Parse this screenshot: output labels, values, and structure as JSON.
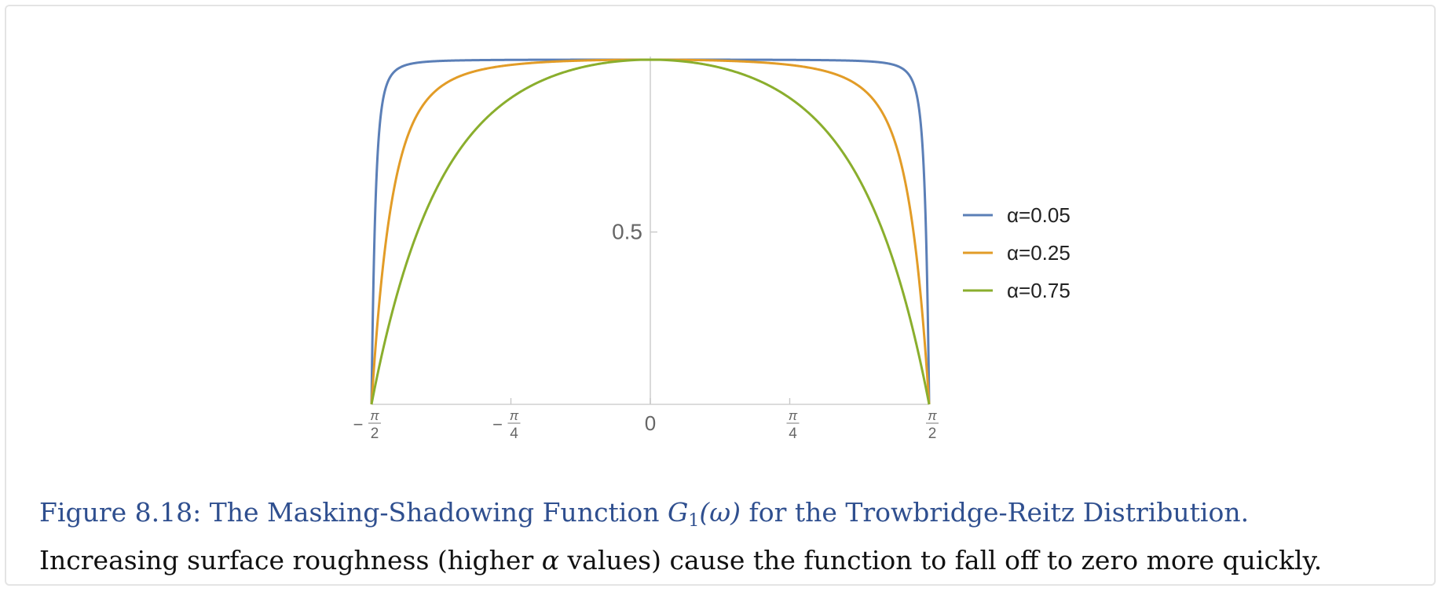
{
  "chart_data": {
    "type": "line",
    "xlim": [
      -1.5708,
      1.5708
    ],
    "ylim": [
      0,
      1
    ],
    "x_ticks": [
      {
        "value": -1.5708,
        "sign": "−",
        "num": "π",
        "den": "2"
      },
      {
        "value": -0.7854,
        "sign": "−",
        "num": "π",
        "den": "4"
      },
      {
        "value": 0,
        "plain": "0"
      },
      {
        "value": 0.7854,
        "sign": "",
        "num": "π",
        "den": "4"
      },
      {
        "value": 1.5708,
        "sign": "",
        "num": "π",
        "den": "2"
      }
    ],
    "y_ticks": [
      {
        "value": 0.5,
        "label": "0.5"
      }
    ],
    "grid": false,
    "legend_position": "right",
    "series": [
      {
        "name": "α=0.05",
        "alpha": 0.05,
        "color": "#5b7fb7"
      },
      {
        "name": "α=0.25",
        "alpha": 0.25,
        "color": "#e29c27"
      },
      {
        "name": "α=0.75",
        "alpha": 0.75,
        "color": "#8aae2d"
      }
    ]
  },
  "caption": {
    "title_pre": "Figure 8.18: The Masking-Shadowing Function ",
    "title_math_G": "G",
    "title_math_sub": "1",
    "title_math_arg": "(ω)",
    "title_post": " for the Trowbridge-Reitz Distribution.",
    "body_pre": "Increasing surface roughness (higher ",
    "body_math": "α",
    "body_post": " values) cause the function to fall off to zero more quickly."
  }
}
